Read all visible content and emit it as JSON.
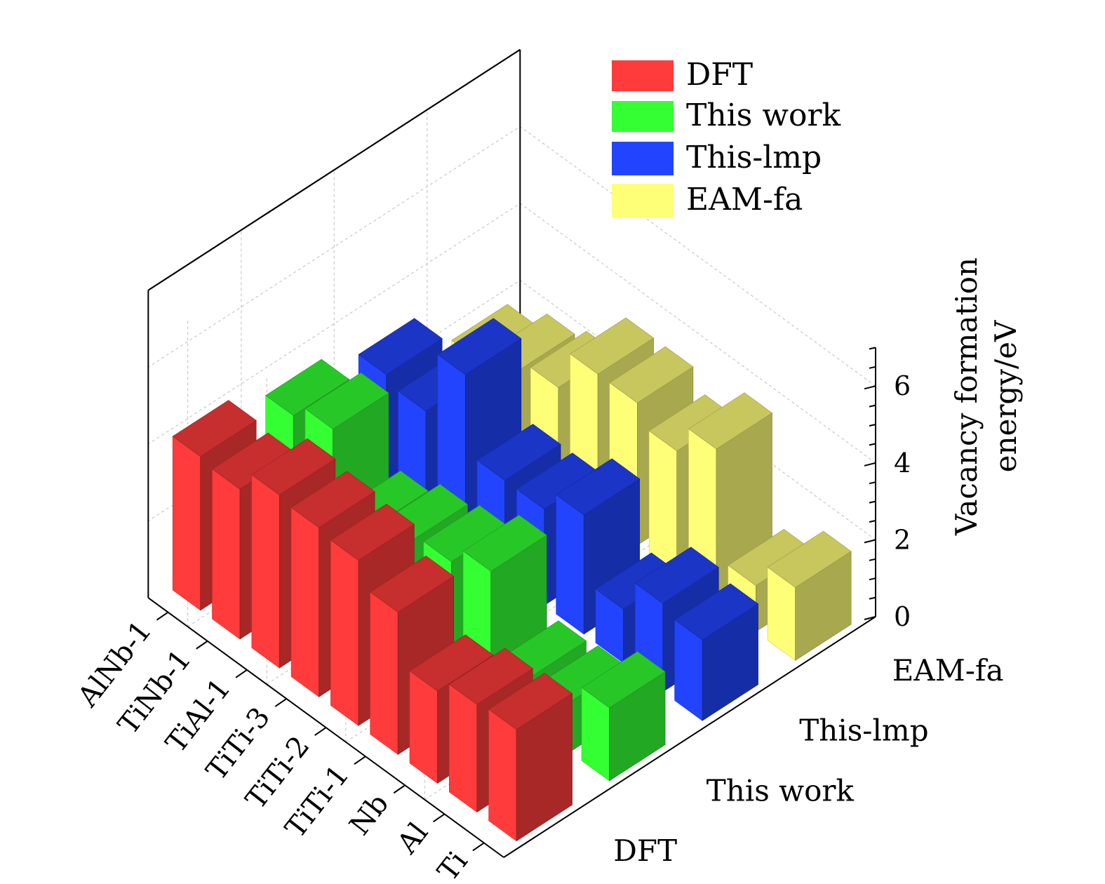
{
  "chart_data": {
    "type": "bar3d",
    "title": "",
    "categories": [
      "AlNb-1",
      "TiNb-1",
      "TiAl-1",
      "TiTi-3",
      "TiTi-2",
      "TiTi-1",
      "Nb",
      "Al",
      "Ti"
    ],
    "series": [
      {
        "name": "DFT",
        "color": "#ff3b3b",
        "values": [
          4.0,
          3.9,
          4.5,
          4.4,
          4.3,
          3.7,
          2.4,
          2.8,
          2.9
        ]
      },
      {
        "name": "This work",
        "color": "#33ff33",
        "values": [
          3.5,
          3.9,
          2.1,
          2.5,
          2.7,
          3.2,
          1.2,
          1.3,
          1.9
        ]
      },
      {
        "name": "This-lmp",
        "color": "#2244ff",
        "values": [
          3.0,
          2.8,
          4.5,
          2.5,
          2.5,
          3.1,
          1.4,
          2.3,
          2.1
        ]
      },
      {
        "name": "EAM-fa",
        "color": "#ffff77",
        "values": [
          1.8,
          2.3,
          2.6,
          3.7,
          3.7,
          3.2,
          4.0,
          1.2,
          1.9
        ]
      }
    ],
    "zlabel": "Vacancy formation energy/eV",
    "zlabel_lines": [
      "Vacancy formation",
      "energy/eV"
    ],
    "zlim": [
      0,
      7
    ],
    "zticks": [
      "0",
      "2",
      "4",
      "6"
    ],
    "legend": [
      "DFT",
      "This work",
      "This-lmp",
      "EAM-fa"
    ],
    "legend_position": "top-right",
    "grid": true
  }
}
